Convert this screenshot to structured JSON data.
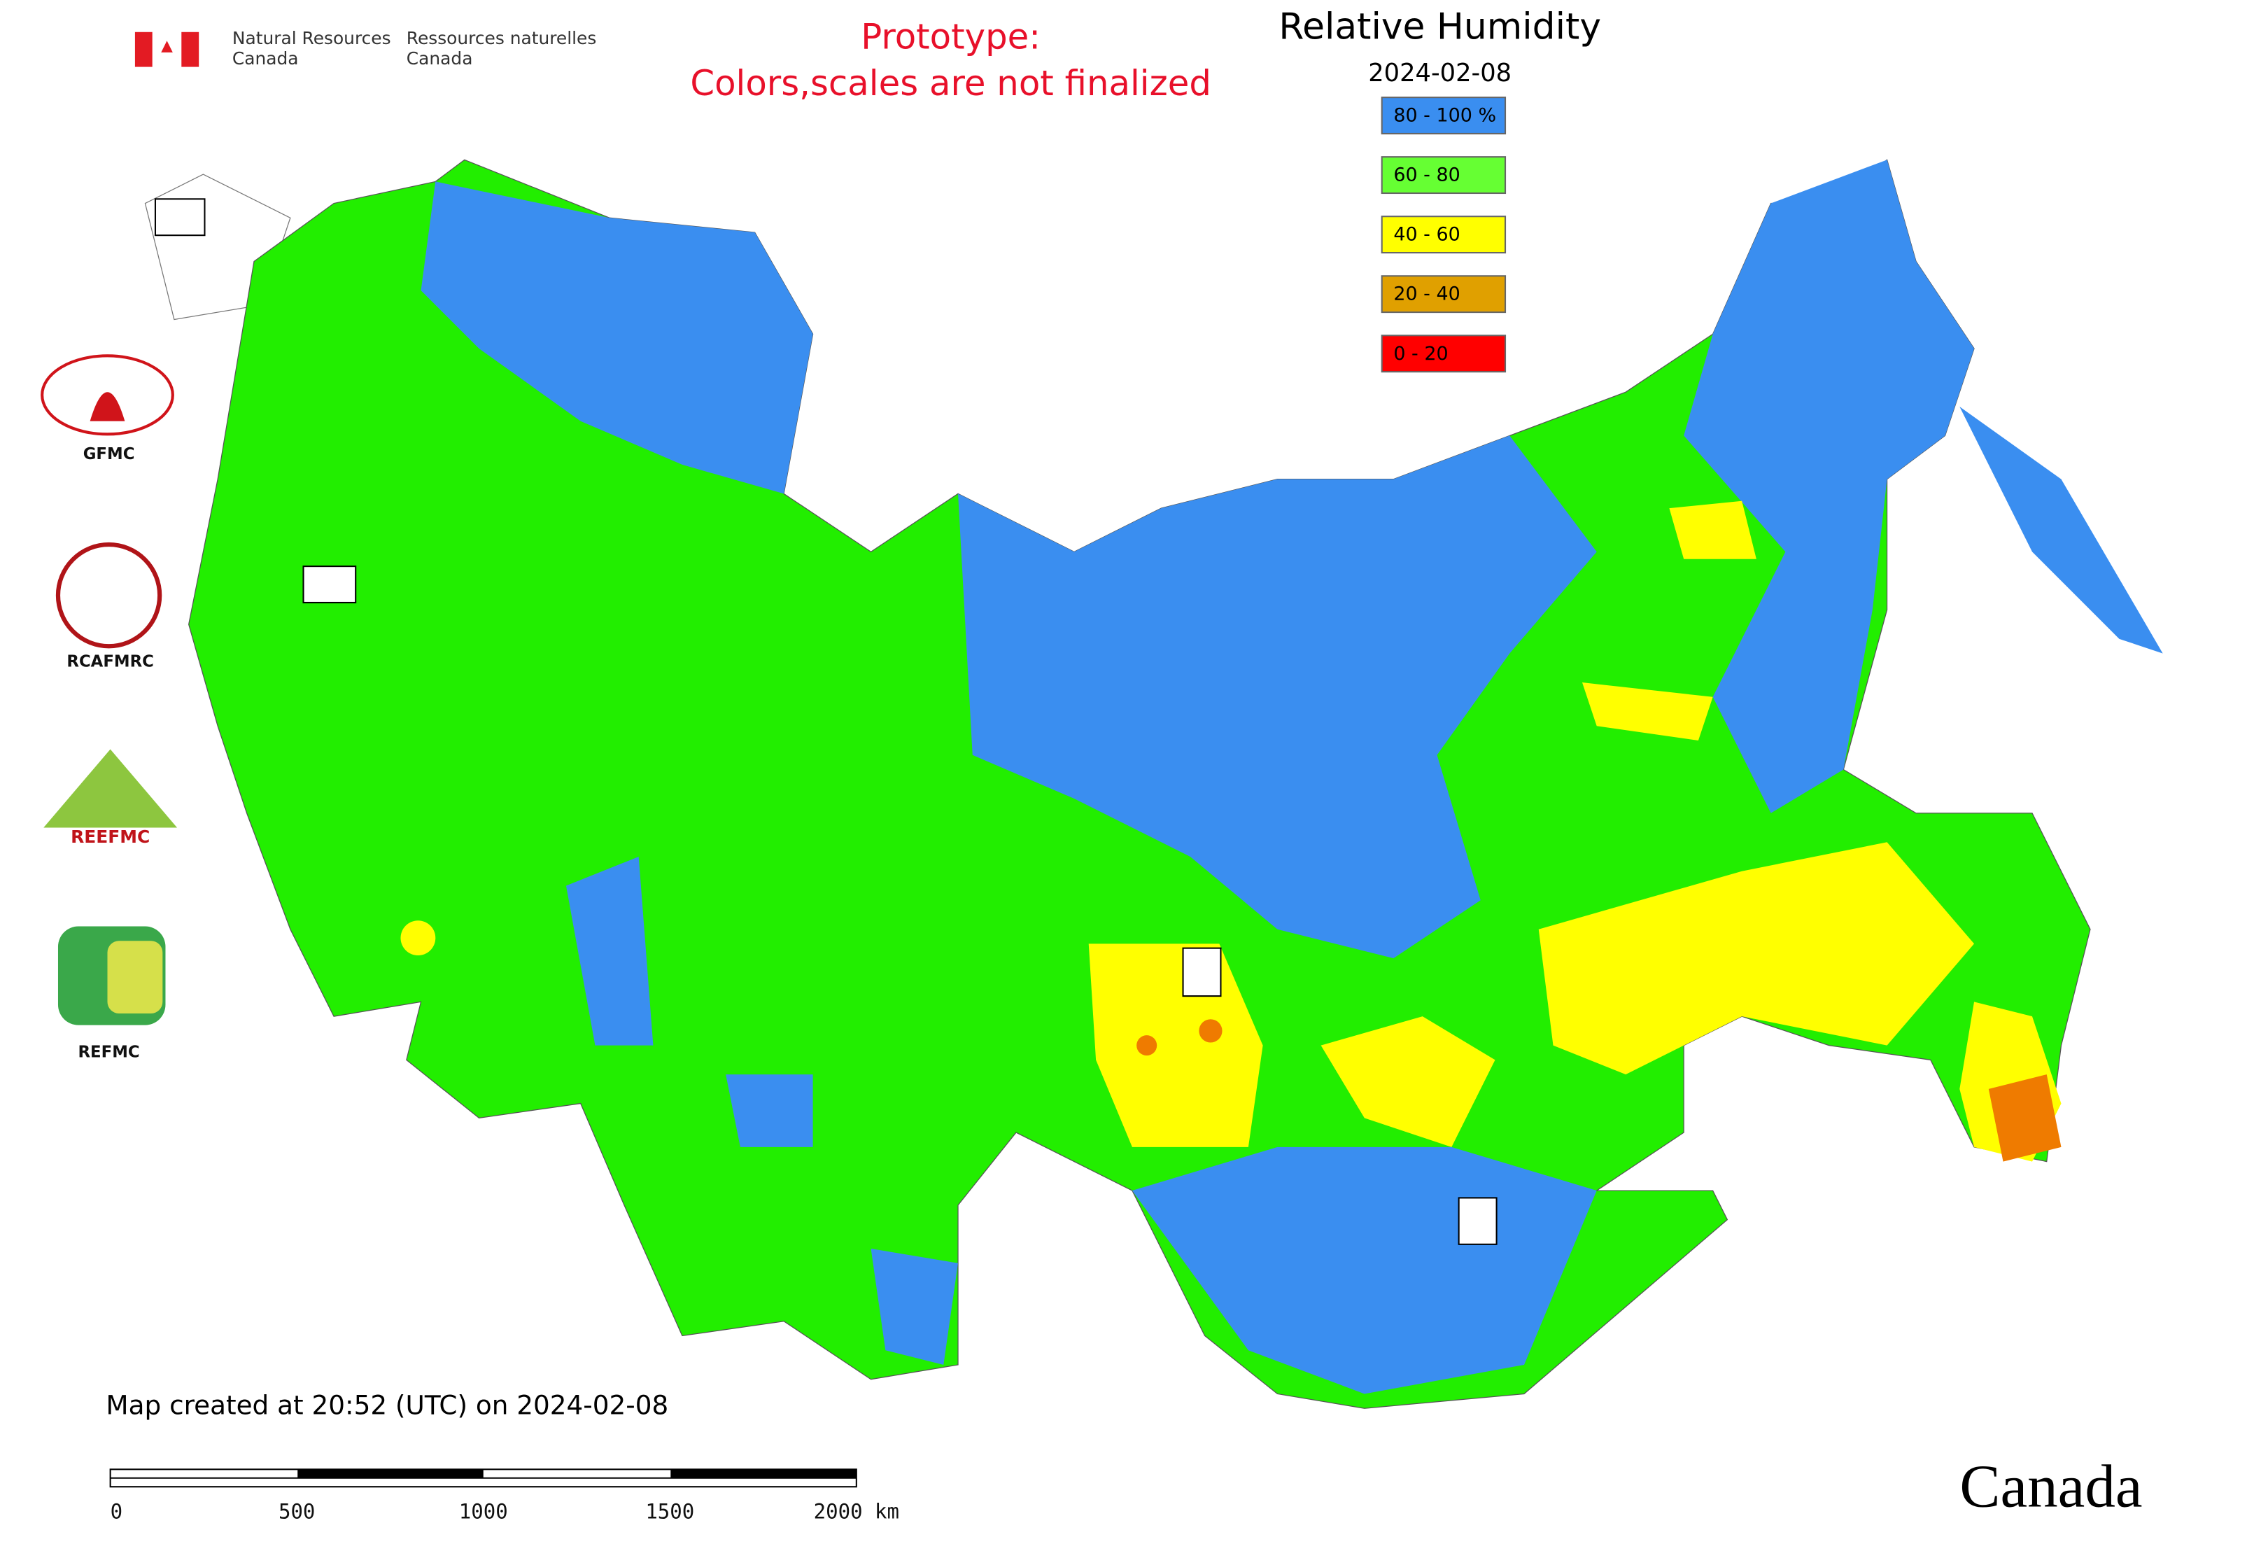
{
  "header": {
    "agency_en": [
      "Natural Resources",
      "Canada"
    ],
    "agency_fr": [
      "Ressources naturelles",
      "Canada"
    ],
    "notice": [
      "Prototype:",
      "Colors,scales are not finalized"
    ]
  },
  "map": {
    "title": "Relative Humidity",
    "date": "2024-02-08",
    "legend": [
      {
        "label": "80 - 100 %",
        "color": "#3a8ef0"
      },
      {
        "label": "60 - 80",
        "color": "#66ff33"
      },
      {
        "label": "40 - 60",
        "color": "#ffff00"
      },
      {
        "label": "20 - 40",
        "color": "#e0a000"
      },
      {
        "label": "0 - 20",
        "color": "#ff0000"
      }
    ],
    "logos": [
      "GFMC",
      "RCAFMRC",
      "REEFMC",
      "REFMC"
    ],
    "footer": "Map created at 20:52 (UTC) on 2024-02-08",
    "scale_labels": [
      "0",
      "500",
      "1000",
      "1500",
      "2000 km"
    ],
    "wordmark": "Canada"
  }
}
